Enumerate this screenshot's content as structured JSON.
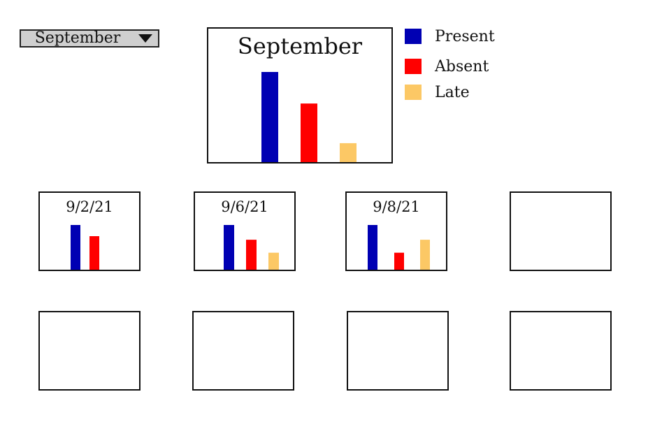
{
  "month_select": {
    "selected": "September"
  },
  "legend": {
    "items": [
      {
        "label": "Present",
        "color": "#0000b3"
      },
      {
        "label": "Absent",
        "color": "#ff0000"
      },
      {
        "label": "Late",
        "color": "#fcc865"
      }
    ]
  },
  "chart_data": [
    {
      "type": "bar",
      "title": "September",
      "categories": [
        "Present",
        "Absent",
        "Late"
      ],
      "values": [
        1.0,
        0.65,
        0.21
      ],
      "colors": [
        "#0000b3",
        "#ff0000",
        "#fcc865"
      ]
    },
    {
      "type": "bar",
      "title": "9/2/21",
      "categories": [
        "Present",
        "Absent",
        "Late"
      ],
      "values": [
        1.0,
        0.75,
        0
      ],
      "colors": [
        "#0000b3",
        "#ff0000",
        "#fcc865"
      ]
    },
    {
      "type": "bar",
      "title": "9/6/21",
      "categories": [
        "Present",
        "Absent",
        "Late"
      ],
      "values": [
        1.0,
        0.67,
        0.38
      ],
      "colors": [
        "#0000b3",
        "#ff0000",
        "#fcc865"
      ]
    },
    {
      "type": "bar",
      "title": "9/8/21",
      "categories": [
        "Present",
        "Absent",
        "Late"
      ],
      "values": [
        1.0,
        0.38,
        0.67
      ],
      "colors": [
        "#0000b3",
        "#ff0000",
        "#fcc865"
      ]
    }
  ]
}
